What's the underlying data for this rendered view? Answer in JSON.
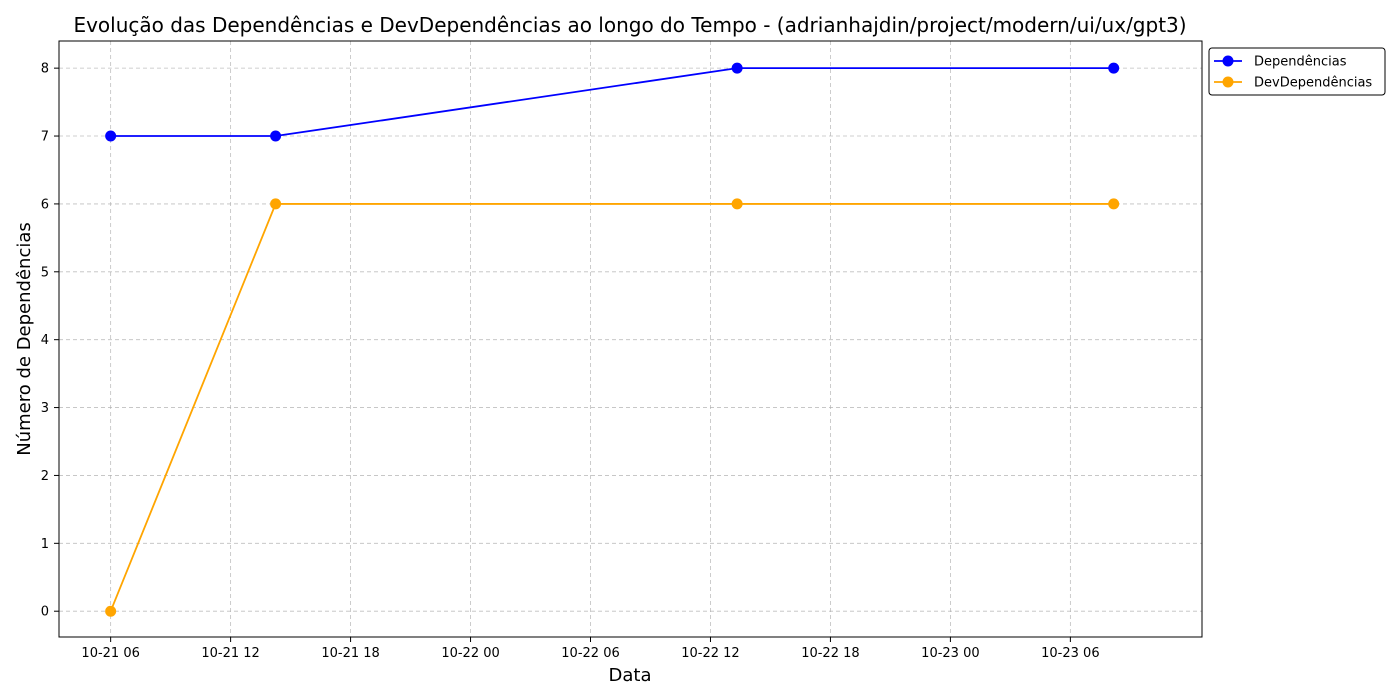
{
  "chart_data": {
    "type": "line",
    "title": "Evolução das Dependências e DevDependências ao longo do Tempo - (adrianhajdin/project/modern/ui/ux/gpt3)",
    "xlabel": "Data",
    "ylabel": "Número de Dependências",
    "x": [
      "2023-10-21T06:00",
      "2023-10-21T14:15",
      "2023-10-22T13:20",
      "2023-10-23T08:10"
    ],
    "x_ticks": [
      "10-21 06",
      "10-21 12",
      "10-21 18",
      "10-22 00",
      "10-22 06",
      "10-22 12",
      "10-22 18",
      "10-23 00",
      "10-23 06"
    ],
    "y_ticks": [
      0,
      1,
      2,
      3,
      4,
      5,
      6,
      7,
      8
    ],
    "xlim": [
      "2023-10-21T03:25",
      "2023-10-23T12:35"
    ],
    "ylim": [
      -0.38,
      8.4
    ],
    "grid": true,
    "legend_position": "outside top-right",
    "series": [
      {
        "name": "Dependências",
        "color": "#0000ff",
        "values": [
          7,
          7,
          8,
          8
        ]
      },
      {
        "name": "DevDependências",
        "color": "#ffa500",
        "values": [
          0,
          6,
          6,
          6
        ]
      }
    ]
  }
}
